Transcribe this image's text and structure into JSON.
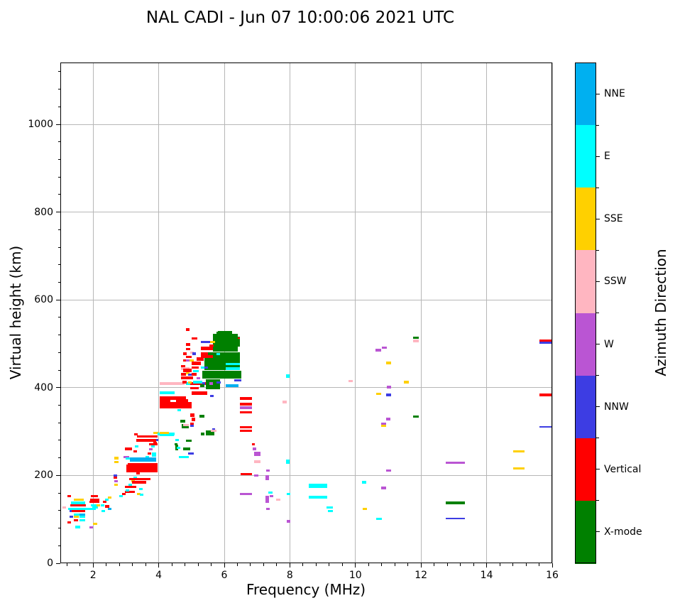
{
  "chart_data": {
    "type": "scatter",
    "title": "NAL CADI - Jun 07 10:00:06 2021 UTC",
    "xlabel": "Frequency (MHz)",
    "ylabel": "Virtual height (km)",
    "xlim": [
      1,
      16
    ],
    "ylim": [
      0,
      1141
    ],
    "xticks": [
      2,
      4,
      6,
      8,
      10,
      12,
      14,
      16
    ],
    "yticks": [
      0,
      200,
      400,
      600,
      800,
      1000
    ],
    "x_minor_step": 0.4,
    "y_minor_step": 40,
    "grid": true,
    "grid_color": "#b7b7b7",
    "colorbar": {
      "label": "Azimuth Direction",
      "categories": [
        {
          "label": "NNE",
          "color": "#00B0F0"
        },
        {
          "label": "E",
          "color": "#00FFFF"
        },
        {
          "label": "SSE",
          "color": "#FFD000"
        },
        {
          "label": "SSW",
          "color": "#FFB6C1"
        },
        {
          "label": "W",
          "color": "#BA55D3"
        },
        {
          "label": "NNW",
          "color": "#3D3DE3"
        },
        {
          "label": "Vertical",
          "color": "#FF0000"
        },
        {
          "label": "X-mode",
          "color": "#008000"
        }
      ]
    },
    "dir_colors": {
      "N": "#00B0F0",
      "E": "#00FFFF",
      "Y": "#FFD000",
      "K": "#FFB6C1",
      "P": "#BA55D3",
      "B": "#3D3DE3",
      "V": "#FF0000",
      "X": "#008000"
    },
    "point_format": "[freq_MHz, virtual_height_km, direction_code, width_MHz_opt, height_km_opt]",
    "points": [
      [
        1.06,
        124,
        "K"
      ],
      [
        1.22,
        150,
        "V"
      ],
      [
        1.41,
        143,
        "Y",
        0.3
      ],
      [
        1.32,
        135,
        "E",
        0.43
      ],
      [
        1.3,
        129,
        "V",
        0.48
      ],
      [
        1.24,
        122,
        "E",
        0.84
      ],
      [
        1.28,
        116,
        "B"
      ],
      [
        1.35,
        116,
        "V",
        0.41
      ],
      [
        1.41,
        109,
        "E",
        0.17
      ],
      [
        1.58,
        109,
        "N",
        0.17
      ],
      [
        1.28,
        103,
        "B"
      ],
      [
        1.41,
        103,
        "Y",
        0.15
      ],
      [
        1.58,
        103,
        "E",
        0.17
      ],
      [
        1.41,
        96,
        "V",
        0.13
      ],
      [
        1.58,
        96,
        "E",
        0.17
      ],
      [
        1.22,
        90,
        "V"
      ],
      [
        1.45,
        80,
        "E",
        0.15
      ],
      [
        2.0,
        88,
        "Y",
        0.13
      ],
      [
        1.89,
        79,
        "P"
      ],
      [
        1.93,
        150,
        "V",
        0.22
      ],
      [
        1.91,
        143,
        "V",
        0.28
      ],
      [
        1.89,
        137,
        "V",
        0.3
      ],
      [
        1.93,
        130,
        "E",
        0.22
      ],
      [
        1.97,
        124,
        "E",
        0.17
      ],
      [
        2.1,
        129,
        "Y"
      ],
      [
        2.23,
        130,
        "E"
      ],
      [
        2.3,
        137,
        "V"
      ],
      [
        2.36,
        142,
        "E"
      ],
      [
        2.45,
        147,
        "Y"
      ],
      [
        2.36,
        127,
        "V",
        0.13
      ],
      [
        2.45,
        122,
        "N"
      ],
      [
        2.26,
        116,
        "E"
      ],
      [
        2.65,
        237,
        "Y",
        0.13
      ],
      [
        2.65,
        228,
        "Y",
        0.13
      ],
      [
        2.62,
        198,
        "B"
      ],
      [
        2.62,
        192,
        "V"
      ],
      [
        2.65,
        185,
        "P"
      ],
      [
        2.65,
        177,
        "Y"
      ],
      [
        2.97,
        171,
        "V",
        0.35
      ],
      [
        2.97,
        160,
        "V",
        0.3
      ],
      [
        3.34,
        155,
        "Y"
      ],
      [
        3.42,
        153,
        "E"
      ],
      [
        3.4,
        166,
        "E"
      ],
      [
        2.8,
        150,
        "E"
      ],
      [
        2.88,
        156,
        "V"
      ],
      [
        2.99,
        163,
        "E"
      ],
      [
        3.08,
        176,
        "E"
      ],
      [
        3.16,
        184,
        "Y"
      ],
      [
        3.23,
        192,
        "E"
      ],
      [
        3.32,
        202,
        "V"
      ],
      [
        3.4,
        211,
        "E"
      ],
      [
        3.47,
        221,
        "V"
      ],
      [
        3.53,
        231,
        "Y"
      ],
      [
        3.6,
        239,
        "E"
      ],
      [
        3.66,
        247,
        "V"
      ],
      [
        3.71,
        257,
        "P"
      ],
      [
        3.77,
        263,
        "E"
      ],
      [
        3.84,
        271,
        "V"
      ],
      [
        3.88,
        279,
        "B"
      ],
      [
        2.93,
        240,
        "P",
        0.17
      ],
      [
        2.99,
        236,
        "E",
        0.26
      ],
      [
        3.12,
        231,
        "N",
        0.8,
        10
      ],
      [
        3.06,
        221,
        "V",
        0.91,
        8
      ],
      [
        3.06,
        213,
        "E",
        0.87,
        6
      ],
      [
        3.01,
        207,
        "V",
        0.95,
        18
      ],
      [
        3.1,
        189,
        "V",
        0.65,
        6
      ],
      [
        3.19,
        182,
        "V",
        0.43,
        6
      ],
      [
        3.25,
        291,
        "V"
      ],
      [
        3.34,
        286,
        "V",
        0.63,
        6
      ],
      [
        3.84,
        294,
        "Y",
        0.17
      ],
      [
        3.97,
        291,
        "E",
        0.52,
        6
      ],
      [
        3.32,
        276,
        "V",
        0.61,
        8
      ],
      [
        2.97,
        258,
        "V",
        0.22,
        6
      ],
      [
        3.23,
        252,
        "V"
      ],
      [
        3.27,
        263,
        "E"
      ],
      [
        3.71,
        268,
        "V",
        0.26,
        6
      ],
      [
        3.79,
        242,
        "E",
        0.13,
        10
      ],
      [
        4.48,
        268,
        "X",
        0.09,
        6
      ],
      [
        4.51,
        258,
        "X",
        0.09,
        13
      ],
      [
        4.55,
        261,
        "E"
      ],
      [
        4.03,
        407,
        "K",
        0.76,
        6
      ],
      [
        4.83,
        406,
        "E",
        0.17,
        6
      ],
      [
        4.96,
        407,
        "V",
        0.48,
        6
      ],
      [
        5.33,
        407,
        "B",
        0.09,
        6
      ],
      [
        4.96,
        396,
        "V",
        0.26,
        6
      ],
      [
        5.0,
        383,
        "V",
        0.48,
        8
      ],
      [
        5.57,
        378,
        "B",
        0.11,
        6
      ],
      [
        4.03,
        385,
        "E",
        0.45,
        6
      ],
      [
        4.03,
        373,
        "V",
        0.8,
        8
      ],
      [
        4.03,
        364,
        "V",
        0.32,
        10
      ],
      [
        4.48,
        362,
        "B",
        0.09,
        6
      ],
      [
        4.53,
        364,
        "V",
        0.37,
        10
      ],
      [
        4.03,
        352,
        "V",
        0.97,
        16
      ],
      [
        4.57,
        347,
        "E"
      ],
      [
        4.96,
        334,
        "V",
        0.13,
        8
      ],
      [
        5.0,
        323,
        "V",
        0.11,
        8
      ],
      [
        4.96,
        312,
        "V",
        0.11,
        8
      ],
      [
        4.66,
        321,
        "X",
        0.15,
        6
      ],
      [
        5.24,
        331,
        "X",
        0.15,
        8
      ],
      [
        5.29,
        292,
        "X",
        0.11,
        6
      ],
      [
        5.44,
        396,
        "X",
        0.43,
        23
      ],
      [
        5.26,
        402,
        "X",
        0.13,
        6
      ],
      [
        5.44,
        292,
        "X",
        0.26,
        10
      ],
      [
        5.63,
        302,
        "B",
        0.09,
        6
      ],
      [
        5.59,
        299,
        "K",
        0.17,
        6
      ],
      [
        4.03,
        294,
        "Y",
        0.28,
        5
      ],
      [
        4.03,
        289,
        "E",
        0.43,
        6
      ],
      [
        4.51,
        279,
        "E"
      ],
      [
        4.7,
        307,
        "X",
        0.22,
        10
      ],
      [
        4.83,
        276,
        "X",
        0.17,
        6
      ],
      [
        4.75,
        257,
        "X",
        0.22,
        6
      ],
      [
        4.96,
        310,
        "B"
      ],
      [
        4.75,
        312,
        "K",
        0.17,
        5
      ],
      [
        4.89,
        247,
        "B",
        0.17,
        5
      ],
      [
        4.62,
        239,
        "E",
        0.3,
        6
      ],
      [
        5.76,
        514,
        "X",
        0.26,
        13
      ],
      [
        5.87,
        509,
        "X",
        0.61,
        8
      ],
      [
        6.09,
        508,
        "V",
        0.39,
        6
      ],
      [
        5.81,
        500,
        "X",
        0.43,
        29
      ],
      [
        6.04,
        493,
        "X",
        0.43,
        19
      ],
      [
        5.65,
        482,
        "X",
        0.76,
        40
      ],
      [
        5.39,
        441,
        "X",
        1.08,
        40
      ],
      [
        5.33,
        420,
        "X",
        1.19,
        19
      ],
      [
        6.04,
        451,
        "E",
        0.43,
        6
      ],
      [
        6.04,
        441,
        "E",
        0.43,
        6
      ],
      [
        6.3,
        414,
        "B",
        0.22,
        5
      ],
      [
        6.04,
        402,
        "N",
        0.39,
        6
      ],
      [
        4.83,
        530,
        "V"
      ],
      [
        5.0,
        509,
        "V",
        0.17,
        6
      ],
      [
        5.29,
        501,
        "B",
        0.28,
        6
      ],
      [
        5.57,
        501,
        "Y",
        0.15,
        6
      ],
      [
        4.83,
        495,
        "V",
        0.13,
        6
      ],
      [
        5.55,
        493,
        "V",
        0.13,
        6
      ],
      [
        5.29,
        485,
        "V",
        0.37,
        8
      ],
      [
        4.83,
        485,
        "V",
        0.13,
        6
      ],
      [
        4.75,
        475,
        "V",
        0.11,
        6
      ],
      [
        4.96,
        477,
        "K"
      ],
      [
        5.03,
        475,
        "B",
        0.11,
        6
      ],
      [
        5.29,
        475,
        "V",
        0.22,
        6
      ],
      [
        5.76,
        474,
        "E"
      ],
      [
        5.29,
        467,
        "V",
        0.37,
        8
      ],
      [
        4.83,
        467,
        "V",
        0.17,
        6
      ],
      [
        4.75,
        459,
        "V"
      ],
      [
        4.83,
        459,
        "P"
      ],
      [
        4.94,
        459,
        "Y",
        0.13,
        6
      ],
      [
        5.16,
        461,
        "V",
        0.22,
        8
      ],
      [
        5.0,
        451,
        "V",
        0.28,
        8
      ],
      [
        4.68,
        446,
        "V",
        0.13,
        6
      ],
      [
        4.68,
        441,
        "K",
        0.26,
        6
      ],
      [
        5.0,
        443,
        "V",
        0.22,
        6
      ],
      [
        5.29,
        443,
        "E"
      ],
      [
        5.39,
        443,
        "B"
      ],
      [
        4.75,
        435,
        "V",
        0.26,
        8
      ],
      [
        5.05,
        435,
        "E",
        0.17,
        6
      ],
      [
        4.83,
        430,
        "Y"
      ],
      [
        4.68,
        427,
        "V",
        0.15,
        6
      ],
      [
        4.9,
        427,
        "B"
      ],
      [
        5.0,
        427,
        "V",
        0.15,
        6
      ],
      [
        4.68,
        419,
        "V",
        0.37,
        6
      ],
      [
        5.16,
        419,
        "P"
      ],
      [
        4.72,
        410,
        "V",
        0.13,
        6
      ],
      [
        4.9,
        410,
        "Y"
      ],
      [
        5.05,
        410,
        "E",
        0.28,
        6
      ],
      [
        5.55,
        407,
        "P"
      ],
      [
        5.76,
        409,
        "B",
        0.13,
        5
      ],
      [
        6.48,
        372,
        "V",
        0.37,
        6
      ],
      [
        6.48,
        360,
        "V",
        0.37,
        6
      ],
      [
        6.48,
        351,
        "P",
        0.37,
        6
      ],
      [
        6.48,
        341,
        "V",
        0.37,
        6
      ],
      [
        6.48,
        307,
        "V",
        0.37,
        6
      ],
      [
        6.48,
        299,
        "V",
        0.37,
        5
      ],
      [
        6.84,
        268,
        "V",
        0.09,
        6
      ],
      [
        6.87,
        258,
        "P"
      ],
      [
        6.91,
        244,
        "P",
        0.19,
        10
      ],
      [
        6.91,
        229,
        "K",
        0.19,
        6
      ],
      [
        7.28,
        208,
        "P",
        0.11,
        6
      ],
      [
        6.5,
        200,
        "V",
        0.35,
        6
      ],
      [
        6.91,
        198,
        "P",
        0.13,
        5
      ],
      [
        7.26,
        189,
        "P",
        0.11,
        11
      ],
      [
        6.48,
        155,
        "P",
        0.37,
        6
      ],
      [
        7.34,
        158,
        "E",
        0.13,
        5
      ],
      [
        7.39,
        150,
        "P"
      ],
      [
        7.58,
        143,
        "K",
        0.13
      ],
      [
        7.26,
        138,
        "P",
        0.11,
        15
      ],
      [
        7.28,
        121,
        "P"
      ],
      [
        7.88,
        423,
        "E",
        0.11,
        8
      ],
      [
        7.77,
        364,
        "K",
        0.13,
        6
      ],
      [
        7.88,
        226,
        "E",
        0.11,
        10
      ],
      [
        7.9,
        155,
        "E"
      ],
      [
        7.9,
        93,
        "P"
      ],
      [
        8.58,
        177,
        "E",
        0.56,
        5
      ],
      [
        8.58,
        171,
        "E",
        0.56,
        8
      ],
      [
        8.58,
        147,
        "E",
        0.56,
        6
      ],
      [
        9.12,
        124,
        "E",
        0.19,
        6
      ],
      [
        9.16,
        116,
        "E",
        0.15,
        6
      ],
      [
        9.79,
        412,
        "K",
        0.13,
        6
      ],
      [
        10.2,
        182,
        "E",
        0.13,
        6
      ],
      [
        10.22,
        122,
        "Y",
        0.13,
        5
      ],
      [
        10.63,
        98,
        "E",
        0.17,
        6
      ],
      [
        10.78,
        315,
        "P",
        0.15,
        5
      ],
      [
        10.78,
        310,
        "Y",
        0.15,
        5
      ],
      [
        10.94,
        325,
        "P",
        0.13,
        6
      ],
      [
        10.94,
        208,
        "P",
        0.15,
        5
      ],
      [
        10.78,
        168,
        "P",
        0.15,
        6
      ],
      [
        10.61,
        483,
        "P",
        0.17,
        6
      ],
      [
        10.81,
        488,
        "P",
        0.15,
        6
      ],
      [
        10.94,
        453,
        "Y",
        0.15,
        6
      ],
      [
        11.48,
        410,
        "Y",
        0.15,
        6
      ],
      [
        10.96,
        398,
        "P",
        0.13,
        6
      ],
      [
        10.63,
        383,
        "Y",
        0.15,
        6
      ],
      [
        10.94,
        381,
        "B",
        0.15,
        6
      ],
      [
        11.76,
        511,
        "X",
        0.17,
        6
      ],
      [
        11.76,
        503,
        "K",
        0.17,
        6
      ],
      [
        11.76,
        331,
        "X",
        0.17,
        6
      ],
      [
        12.75,
        226,
        "P",
        0.58,
        6
      ],
      [
        12.75,
        135,
        "X",
        0.58,
        6
      ],
      [
        12.75,
        100,
        "B",
        0.58,
        3
      ],
      [
        14.81,
        252,
        "Y",
        0.35,
        6
      ],
      [
        14.81,
        213,
        "Y",
        0.35,
        5
      ],
      [
        15.61,
        504,
        "V",
        0.39,
        5
      ],
      [
        15.61,
        500,
        "B",
        0.39,
        5
      ],
      [
        15.61,
        380,
        "V",
        0.37,
        6
      ],
      [
        15.61,
        310,
        "B",
        0.37,
        3
      ]
    ]
  }
}
